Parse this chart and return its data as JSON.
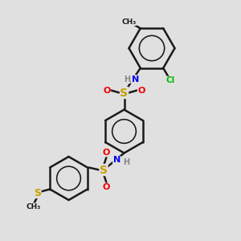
{
  "bg_color": "#e0e0e0",
  "bond_color": "#1a1a1a",
  "bond_width": 1.8,
  "figsize": [
    3.0,
    3.0
  ],
  "dpi": 100,
  "atoms": {
    "S_color": "#c8a000",
    "N_color": "#0000ee",
    "O_color": "#ee0000",
    "Cl_color": "#00bb00",
    "H_color": "#888888"
  },
  "layout": {
    "xlim": [
      0,
      10
    ],
    "ylim": [
      0,
      10
    ]
  }
}
